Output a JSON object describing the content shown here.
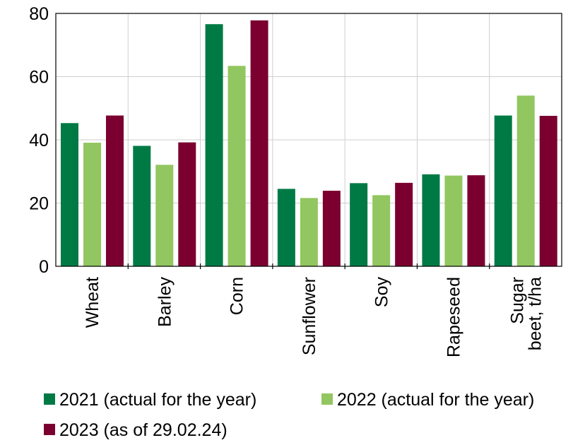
{
  "chart_data": {
    "type": "bar",
    "title": "",
    "xlabel": "",
    "ylabel": "",
    "ylim": [
      0,
      80
    ],
    "yticks": [
      0,
      20,
      40,
      60,
      80
    ],
    "grid": true,
    "legend_position": "bottom",
    "categories": [
      [
        "Wheat"
      ],
      [
        "Barley"
      ],
      [
        "Corn"
      ],
      [
        "Sunflower"
      ],
      [
        "Soy"
      ],
      [
        "Rapeseed"
      ],
      [
        "Sugar",
        "beet, t/ha"
      ]
    ],
    "series": [
      {
        "name": "2021 (actual for the year)",
        "color": "#007A45",
        "values": [
          45.3,
          38.1,
          76.6,
          24.5,
          26.3,
          29.1,
          47.7
        ]
      },
      {
        "name": "2022 (actual for the year)",
        "color": "#92C660",
        "values": [
          39.1,
          32.1,
          63.4,
          21.6,
          22.5,
          28.7,
          54.0
        ]
      },
      {
        "name": "2023 (as of 29.02.24)",
        "color": "#7B0030",
        "values": [
          47.7,
          39.2,
          77.8,
          23.9,
          26.4,
          28.8,
          47.6
        ]
      }
    ]
  }
}
